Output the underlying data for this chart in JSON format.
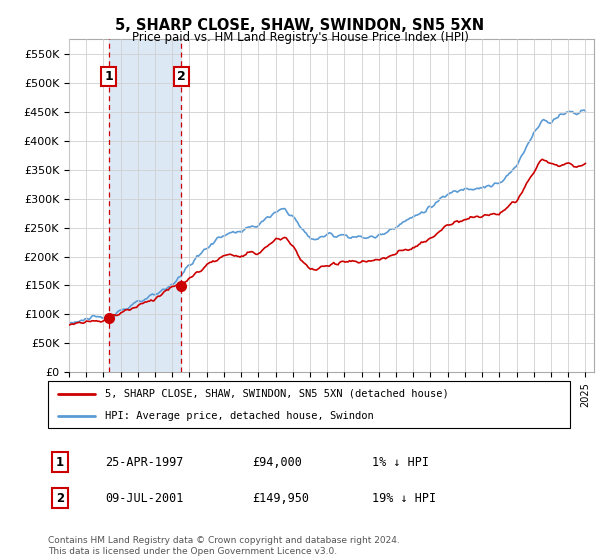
{
  "title": "5, SHARP CLOSE, SHAW, SWINDON, SN5 5XN",
  "subtitle": "Price paid vs. HM Land Registry's House Price Index (HPI)",
  "ylim": [
    0,
    575000
  ],
  "yticks": [
    0,
    50000,
    100000,
    150000,
    200000,
    250000,
    300000,
    350000,
    400000,
    450000,
    500000,
    550000
  ],
  "ytick_labels": [
    "£0",
    "£50K",
    "£100K",
    "£150K",
    "£200K",
    "£250K",
    "£300K",
    "£350K",
    "£400K",
    "£450K",
    "£500K",
    "£550K"
  ],
  "xlim_start": 1995.0,
  "xlim_end": 2025.5,
  "hpi_color": "#5b9bd5",
  "price_color": "#cc0000",
  "highlight_color": "#dce9f5",
  "transaction1_x": 1997.32,
  "transaction1_y": 94000,
  "transaction2_x": 2001.52,
  "transaction2_y": 149950,
  "legend_line1": "5, SHARP CLOSE, SHAW, SWINDON, SN5 5XN (detached house)",
  "legend_line2": "HPI: Average price, detached house, Swindon",
  "table_row1": [
    "1",
    "25-APR-1997",
    "£94,000",
    "1% ↓ HPI"
  ],
  "table_row2": [
    "2",
    "09-JUL-2001",
    "£149,950",
    "19% ↓ HPI"
  ],
  "footer": "Contains HM Land Registry data © Crown copyright and database right 2024.\nThis data is licensed under the Open Government Licence v3.0.",
  "bg_color": "#ffffff",
  "grid_color": "#d0d0d0"
}
